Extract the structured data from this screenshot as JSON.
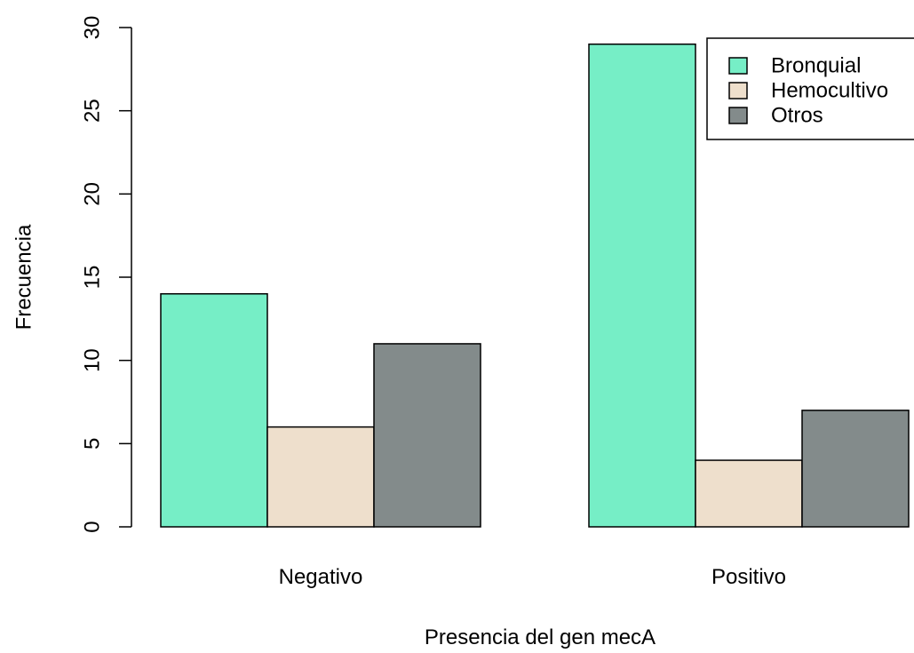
{
  "chart_data": {
    "type": "bar",
    "layout": "grouped",
    "categories": [
      "Negativo",
      "Positivo"
    ],
    "series": [
      {
        "name": "Bronquial",
        "values": [
          14,
          29
        ],
        "color": "#76EEC6"
      },
      {
        "name": "Hemocultivo",
        "values": [
          6,
          4
        ],
        "color": "#EEDFCC"
      },
      {
        "name": "Otros",
        "values": [
          11,
          7
        ],
        "color": "#838B8B"
      }
    ],
    "xlabel": "Presencia del gen mecA",
    "ylabel": "Frecuencia",
    "ylim": [
      0,
      30
    ],
    "yticks": [
      0,
      5,
      10,
      15,
      20,
      25,
      30
    ],
    "grid": false,
    "legend_position": "top-right"
  }
}
